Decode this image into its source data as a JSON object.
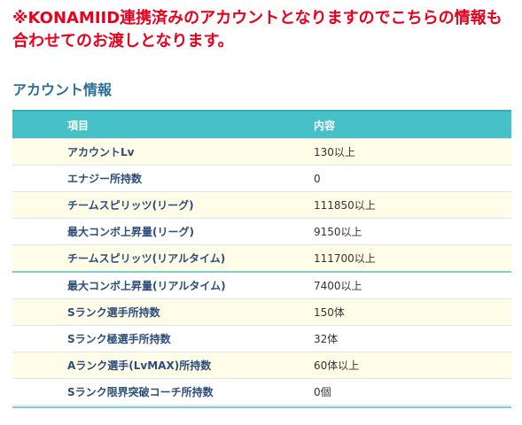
{
  "notice": {
    "line1": "※KONAMIID連携済みのアカウントとなりますのでこちらの情報も",
    "line2": "合わせてのお渡しとなります。"
  },
  "section": {
    "title": "アカウント情報"
  },
  "table": {
    "headers": [
      "項目",
      "内容"
    ],
    "rows": [
      {
        "key": "アカウントLv",
        "value": "130以上"
      },
      {
        "key": "エナジー所持数",
        "value": "0"
      },
      {
        "key": "チームスピリッツ(リーグ)",
        "value": "111850以上"
      },
      {
        "key": "最大コンボ上昇量(リーグ)",
        "value": "9150以上"
      },
      {
        "key": "チームスピリッツ(リアルタイム)",
        "value": "111700以上"
      },
      {
        "key": "最大コンボ上昇量(リアルタイム)",
        "value": "7400以上"
      },
      {
        "key": "Sランク選手所持数",
        "value": "150体"
      },
      {
        "key": "Sランク極選手所持数",
        "value": "32体"
      },
      {
        "key": "Aランク選手(LvMAX)所持数",
        "value": "60体以上"
      },
      {
        "key": "Sランク限界突破コーチ所持数",
        "value": "0個"
      }
    ]
  },
  "colors": {
    "notice": "#e8001c",
    "section_title": "#2f6f9a",
    "header_bg": "#45c1c7",
    "row_alt_bg": "#fffde8"
  }
}
